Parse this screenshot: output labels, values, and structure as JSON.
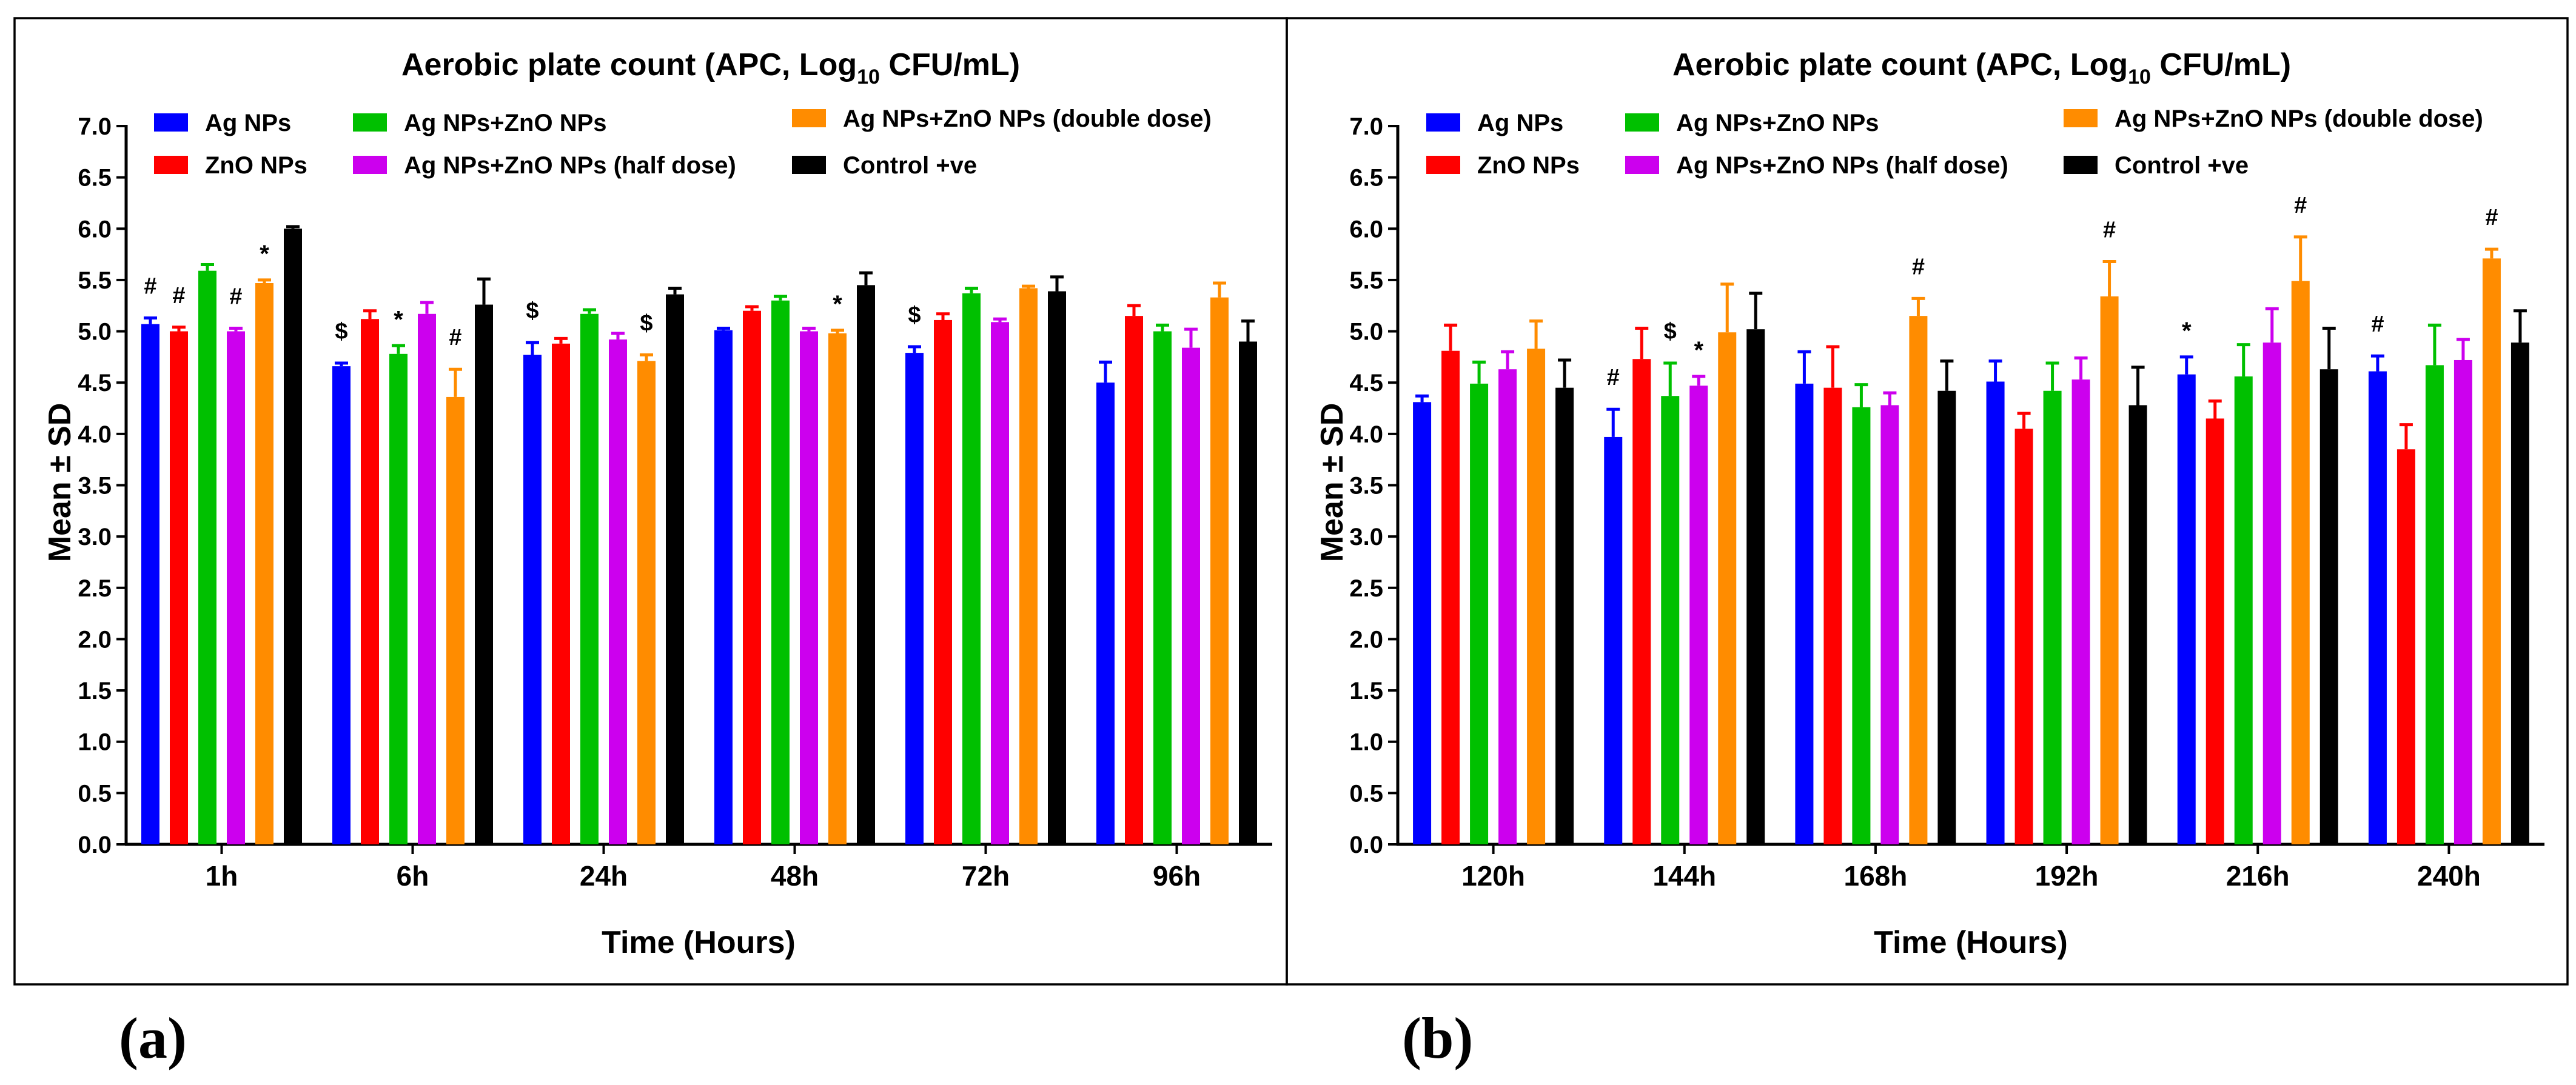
{
  "panel_tags": [
    "(a)",
    "(b)"
  ],
  "chart_data": [
    {
      "type": "bar",
      "title_main": "Aerobic plate count (APC, Log",
      "title_sub": "10",
      "title_end": " CFU/mL)",
      "xlabel": "Time (Hours)",
      "ylabel": "Mean ± SD",
      "ylim": [
        0,
        7.0
      ],
      "yticks": [
        "0.0",
        "0.5",
        "1.0",
        "1.5",
        "2.0",
        "2.5",
        "3.0",
        "3.5",
        "4.0",
        "4.5",
        "5.0",
        "5.5",
        "6.0",
        "6.5",
        "7.0"
      ],
      "categories": [
        "1h",
        "6h",
        "24h",
        "48h",
        "72h",
        "96h"
      ],
      "series": [
        {
          "name": "Ag NPs",
          "color": "#0000ff",
          "values": [
            5.07,
            4.66,
            4.77,
            5.01,
            4.79,
            4.5
          ],
          "errors": [
            0.06,
            0.03,
            0.12,
            0.02,
            0.06,
            0.2
          ]
        },
        {
          "name": "ZnO NPs",
          "color": "#ff0000",
          "values": [
            5.0,
            5.12,
            4.88,
            5.2,
            5.11,
            5.15
          ],
          "errors": [
            0.04,
            0.08,
            0.05,
            0.04,
            0.06,
            0.1
          ]
        },
        {
          "name": "Ag NPs+ZnO NPs",
          "color": "#00c000",
          "values": [
            5.59,
            4.78,
            5.17,
            5.3,
            5.37,
            5.0
          ],
          "errors": [
            0.06,
            0.08,
            0.04,
            0.04,
            0.05,
            0.06
          ]
        },
        {
          "name": "Ag NPs+ZnO NPs (half dose)",
          "color": "#cc00ee",
          "values": [
            5.0,
            5.17,
            4.92,
            5.0,
            5.09,
            4.84
          ],
          "errors": [
            0.03,
            0.11,
            0.06,
            0.03,
            0.03,
            0.18
          ]
        },
        {
          "name": "Ag NPs+ZnO NPs (double dose)",
          "color": "#ff8c00",
          "values": [
            5.47,
            4.36,
            4.71,
            4.98,
            5.42,
            5.33
          ],
          "errors": [
            0.03,
            0.27,
            0.06,
            0.03,
            0.02,
            0.14
          ]
        },
        {
          "name": "Control +ve",
          "color": "#000000",
          "values": [
            6.0,
            5.26,
            5.36,
            5.45,
            5.39,
            4.9
          ],
          "errors": [
            0.02,
            0.25,
            0.06,
            0.12,
            0.14,
            0.2
          ]
        }
      ],
      "annotations": [
        {
          "text": "#",
          "category": 0,
          "series": 0
        },
        {
          "text": "#",
          "category": 0,
          "series": 1
        },
        {
          "text": "#",
          "category": 0,
          "series": 3
        },
        {
          "text": "*",
          "category": 0,
          "series": 4
        },
        {
          "text": "$",
          "category": 1,
          "series": 0
        },
        {
          "text": "*",
          "category": 1,
          "series": 2
        },
        {
          "text": "#",
          "category": 1,
          "series": 4
        },
        {
          "text": "$",
          "category": 2,
          "series": 0
        },
        {
          "text": "$",
          "category": 2,
          "series": 4
        },
        {
          "text": "*",
          "category": 3,
          "series": 4
        },
        {
          "text": "$",
          "category": 4,
          "series": 0
        }
      ]
    },
    {
      "type": "bar",
      "title_main": "Aerobic plate count (APC, Log",
      "title_sub": "10",
      "title_end": " CFU/mL)",
      "xlabel": "Time (Hours)",
      "ylabel": "Mean ± SD",
      "ylim": [
        0,
        7.0
      ],
      "yticks": [
        "0.0",
        "0.5",
        "1.0",
        "1.5",
        "2.0",
        "2.5",
        "3.0",
        "3.5",
        "4.0",
        "4.5",
        "5.0",
        "5.5",
        "6.0",
        "6.5",
        "7.0"
      ],
      "categories": [
        "120h",
        "144h",
        "168h",
        "192h",
        "216h",
        "240h"
      ],
      "series": [
        {
          "name": "Ag NPs",
          "color": "#0000ff",
          "values": [
            4.31,
            3.97,
            4.49,
            4.51,
            4.58,
            4.61
          ],
          "errors": [
            0.06,
            0.27,
            0.31,
            0.2,
            0.17,
            0.15
          ]
        },
        {
          "name": "ZnO NPs",
          "color": "#ff0000",
          "values": [
            4.81,
            4.73,
            4.45,
            4.05,
            4.15,
            3.85
          ],
          "errors": [
            0.25,
            0.3,
            0.4,
            0.15,
            0.17,
            0.24
          ]
        },
        {
          "name": "Ag NPs+ZnO NPs",
          "color": "#00c000",
          "values": [
            4.49,
            4.37,
            4.26,
            4.42,
            4.56,
            4.67
          ],
          "errors": [
            0.21,
            0.32,
            0.22,
            0.27,
            0.31,
            0.39
          ]
        },
        {
          "name": "Ag NPs+ZnO NPs (half dose)",
          "color": "#cc00ee",
          "values": [
            4.63,
            4.47,
            4.28,
            4.53,
            4.89,
            4.72
          ],
          "errors": [
            0.17,
            0.09,
            0.12,
            0.21,
            0.33,
            0.2
          ]
        },
        {
          "name": "Ag NPs+ZnO NPs (double dose)",
          "color": "#ff8c00",
          "values": [
            4.83,
            4.99,
            5.15,
            5.34,
            5.49,
            5.71
          ],
          "errors": [
            0.27,
            0.47,
            0.17,
            0.34,
            0.43,
            0.09
          ]
        },
        {
          "name": "Control +ve",
          "color": "#000000",
          "values": [
            4.45,
            5.02,
            4.42,
            4.28,
            4.63,
            4.89
          ],
          "errors": [
            0.27,
            0.35,
            0.29,
            0.37,
            0.4,
            0.31
          ]
        }
      ],
      "annotations": [
        {
          "text": "#",
          "category": 1,
          "series": 0
        },
        {
          "text": "$",
          "category": 1,
          "series": 2
        },
        {
          "text": "*",
          "category": 1,
          "series": 3
        },
        {
          "text": "#",
          "category": 2,
          "series": 4
        },
        {
          "text": "#",
          "category": 3,
          "series": 4
        },
        {
          "text": "*",
          "category": 4,
          "series": 0
        },
        {
          "text": "#",
          "category": 4,
          "series": 4
        },
        {
          "text": "#",
          "category": 5,
          "series": 0
        },
        {
          "text": "#",
          "category": 5,
          "series": 4
        }
      ]
    }
  ]
}
